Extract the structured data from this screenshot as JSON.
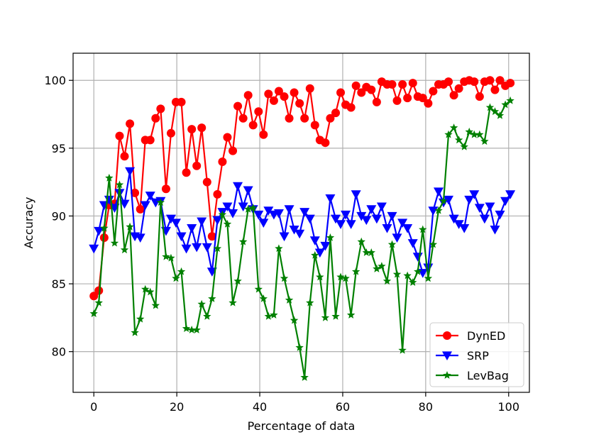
{
  "chart_data": {
    "type": "line",
    "xlabel": "Percentage of data",
    "ylabel": "Accuracy",
    "xlim": [
      -5,
      105
    ],
    "ylim": [
      77,
      102
    ],
    "xticks": [
      0,
      20,
      40,
      60,
      80,
      100
    ],
    "yticks": [
      80,
      85,
      90,
      95,
      100
    ],
    "grid": true,
    "legend_position": "lower-right",
    "x": [
      0,
      1.2,
      2.5,
      3.7,
      5.0,
      6.2,
      7.4,
      8.7,
      9.9,
      11.2,
      12.4,
      13.6,
      14.9,
      16.1,
      17.4,
      18.6,
      19.8,
      21.1,
      22.3,
      23.6,
      24.8,
      26.0,
      27.3,
      28.5,
      29.8,
      31.0,
      32.2,
      33.5,
      34.7,
      36.0,
      37.2,
      38.4,
      39.7,
      40.9,
      42.1,
      43.4,
      44.6,
      45.9,
      47.1,
      48.3,
      49.6,
      50.8,
      52.1,
      53.3,
      54.5,
      55.8,
      57.0,
      58.3,
      59.5,
      60.7,
      62.0,
      63.2,
      64.5,
      65.7,
      66.9,
      68.2,
      69.4,
      70.7,
      71.9,
      73.1,
      74.4,
      75.6,
      76.9,
      78.1,
      79.3,
      80.6,
      81.8,
      83.1,
      84.3,
      85.5,
      86.8,
      88.0,
      89.3,
      90.5,
      91.7,
      93.0,
      94.2,
      95.5,
      96.7,
      97.9,
      99.2,
      100.4
    ],
    "series": [
      {
        "name": "DynED",
        "color": "#ff0000",
        "marker": "circle",
        "values": [
          84.1,
          84.5,
          88.4,
          90.8,
          90.9,
          95.9,
          94.4,
          96.8,
          91.7,
          90.5,
          95.6,
          95.6,
          97.2,
          97.9,
          92.0,
          96.1,
          98.4,
          98.4,
          93.2,
          96.4,
          93.7,
          96.5,
          92.5,
          88.5,
          91.6,
          94.0,
          95.8,
          94.8,
          98.1,
          97.2,
          98.9,
          96.7,
          97.7,
          96.0,
          99.0,
          98.5,
          99.2,
          98.8,
          97.2,
          99.1,
          98.3,
          97.2,
          99.4,
          96.7,
          95.6,
          95.4,
          97.2,
          97.6,
          99.1,
          98.2,
          98.0,
          99.6,
          99.1,
          99.5,
          99.3,
          98.4,
          99.9,
          99.7,
          99.7,
          98.5,
          99.7,
          98.7,
          99.8,
          98.8,
          98.7,
          98.3,
          99.2,
          99.7,
          99.7,
          99.9,
          98.9,
          99.4,
          99.9,
          100.0,
          99.9,
          98.8,
          99.9,
          100.0,
          99.3,
          100.0,
          99.6,
          99.8
        ]
      },
      {
        "name": "SRP",
        "color": "#0000ff",
        "marker": "triangle-down",
        "values": [
          87.6,
          88.9,
          90.8,
          91.2,
          90.6,
          91.7,
          90.9,
          93.3,
          88.5,
          88.4,
          90.8,
          91.5,
          91.0,
          91.1,
          88.9,
          89.8,
          89.5,
          88.5,
          87.6,
          89.1,
          87.7,
          89.6,
          87.7,
          85.9,
          89.7,
          90.3,
          90.7,
          90.2,
          92.2,
          90.7,
          91.9,
          90.5,
          90.1,
          89.5,
          90.4,
          90.1,
          90.2,
          88.5,
          90.5,
          89.0,
          88.7,
          90.3,
          89.8,
          88.2,
          87.3,
          87.8,
          91.3,
          89.8,
          89.4,
          90.1,
          89.4,
          91.6,
          90.0,
          89.7,
          90.5,
          89.8,
          90.7,
          89.1,
          90.0,
          88.4,
          89.5,
          89.1,
          88.0,
          87.0,
          85.8,
          86.2,
          90.4,
          91.8,
          91.0,
          91.2,
          89.8,
          89.4,
          89.1,
          91.2,
          91.6,
          90.6,
          89.8,
          90.7,
          89.0,
          90.1,
          91.1,
          91.6
        ]
      },
      {
        "name": "LevBag",
        "color": "#008000",
        "marker": "star",
        "values": [
          82.8,
          83.6,
          89.1,
          92.8,
          88.0,
          92.3,
          87.5,
          89.2,
          81.4,
          82.4,
          84.6,
          84.4,
          83.4,
          91.0,
          87.0,
          86.9,
          85.4,
          85.9,
          81.7,
          81.6,
          81.6,
          83.5,
          82.6,
          83.9,
          87.6,
          90.1,
          89.4,
          83.6,
          85.2,
          88.1,
          90.5,
          90.6,
          84.6,
          83.9,
          82.6,
          82.7,
          87.6,
          85.4,
          83.8,
          82.3,
          80.3,
          78.1,
          83.6,
          87.1,
          85.5,
          82.5,
          88.4,
          82.6,
          85.5,
          85.4,
          82.7,
          85.9,
          88.1,
          87.3,
          87.3,
          86.1,
          86.3,
          85.2,
          87.9,
          85.7,
          80.1,
          85.6,
          85.1,
          85.9,
          89.0,
          85.4,
          87.9,
          90.4,
          91.1,
          96.0,
          96.5,
          95.6,
          95.1,
          96.2,
          96.0,
          96.0,
          95.5,
          98.0,
          97.7,
          97.4,
          98.2,
          98.5
        ]
      }
    ]
  }
}
